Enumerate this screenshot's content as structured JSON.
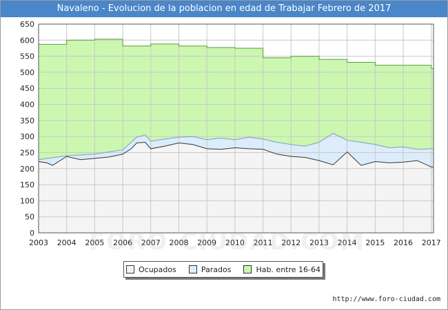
{
  "title": "Navaleno - Evolucion de la poblacion en edad de Trabajar Febrero de 2017",
  "footer_url": "http://www.foro-ciudad.com",
  "watermark": "FORO-CIUDAD.COM",
  "colors": {
    "title_bg": "#4a86c8",
    "hab_fill": "#ccf7b0",
    "hab_line": "#5a9a3a",
    "parados_fill": "#dcecfb",
    "parados_line": "#7a9ec0",
    "ocupados_fill": "#f4f4f4",
    "ocupados_line": "#333333",
    "grid": "#c8c8c8"
  },
  "legend": [
    {
      "label": "Ocupados",
      "color": "#f4f4f4"
    },
    {
      "label": "Parados",
      "color": "#dcecfb"
    },
    {
      "label": "Hab. entre 16-64",
      "color": "#ccf7b0"
    }
  ],
  "chart_data": {
    "type": "area",
    "title": "Navaleno - Evolucion de la poblacion en edad de Trabajar Febrero de 2017",
    "xlabel": "",
    "ylabel": "",
    "xlim": [
      2003,
      2017.08
    ],
    "ylim": [
      0,
      650
    ],
    "y_ticks": [
      0,
      50,
      100,
      150,
      200,
      250,
      300,
      350,
      400,
      450,
      500,
      550,
      600,
      650
    ],
    "x_ticks": [
      "2003",
      "2004",
      "2005",
      "2006",
      "2007",
      "2008",
      "2009",
      "2010",
      "2011",
      "2012",
      "2013",
      "2014",
      "2015",
      "2016",
      "2017"
    ],
    "grid": true,
    "legend_position": "bottom",
    "series": [
      {
        "name": "Hab. entre 16-64",
        "step": true,
        "x": [
          2003,
          2004,
          2005,
          2006,
          2007,
          2008,
          2009,
          2010,
          2011,
          2012,
          2013,
          2014,
          2015,
          2016,
          2017
        ],
        "values": [
          587,
          600,
          603,
          582,
          588,
          582,
          577,
          575,
          545,
          550,
          540,
          531,
          522,
          522,
          512
        ]
      },
      {
        "name": "Parados",
        "x": [
          2003,
          2004,
          2005,
          2005.5,
          2006,
          2006.3,
          2006.5,
          2006.8,
          2007,
          2007.5,
          2008,
          2008.5,
          2009,
          2009.5,
          2010,
          2010.5,
          2011,
          2011.5,
          2012,
          2012.5,
          2013,
          2013.5,
          2014,
          2014.5,
          2015,
          2015.5,
          2016,
          2016.5,
          2017
        ],
        "values": [
          228,
          240,
          245,
          252,
          258,
          282,
          298,
          305,
          285,
          292,
          298,
          300,
          290,
          295,
          290,
          298,
          292,
          282,
          275,
          270,
          282,
          310,
          288,
          282,
          275,
          265,
          268,
          260,
          262
        ]
      },
      {
        "name": "Ocupados",
        "x": [
          2003,
          2003.3,
          2003.5,
          2004,
          2004.5,
          2005,
          2005.5,
          2006,
          2006.3,
          2006.5,
          2006.8,
          2007,
          2007.5,
          2008,
          2008.5,
          2009,
          2009.5,
          2010,
          2010.5,
          2011,
          2011.5,
          2012,
          2012.5,
          2013,
          2013.5,
          2014,
          2014.5,
          2015,
          2015.5,
          2016,
          2016.5,
          2017
        ],
        "values": [
          222,
          218,
          210,
          238,
          228,
          232,
          236,
          245,
          262,
          280,
          282,
          262,
          270,
          280,
          275,
          262,
          260,
          265,
          262,
          260,
          245,
          238,
          235,
          225,
          212,
          252,
          210,
          222,
          218,
          220,
          225,
          205
        ]
      }
    ]
  }
}
